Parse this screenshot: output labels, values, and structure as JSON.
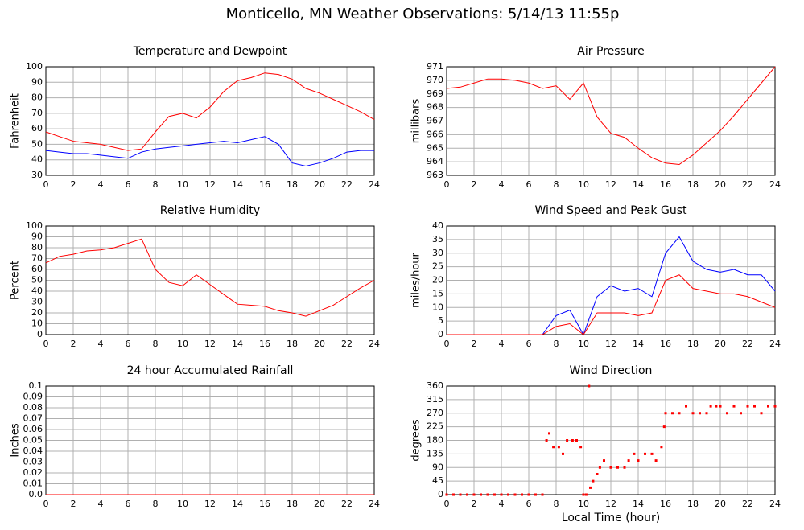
{
  "title": "Monticello, MN Weather Observations: 5/14/13 11:55p",
  "chart_data": [
    {
      "type": "line",
      "title": "Temperature and Dewpoint",
      "ylabel": "Fahrenheit",
      "x": [
        0,
        1,
        2,
        3,
        4,
        5,
        6,
        7,
        8,
        9,
        10,
        11,
        12,
        13,
        14,
        15,
        16,
        17,
        18,
        19,
        20,
        21,
        22,
        23,
        24
      ],
      "series": [
        {
          "color": "#ff0000",
          "values": [
            58,
            55,
            52,
            51,
            50,
            48,
            46,
            47,
            58,
            68,
            70,
            67,
            74,
            84,
            91,
            93,
            96,
            95,
            92,
            86,
            83,
            79,
            75,
            71,
            66
          ]
        },
        {
          "color": "#0000ff",
          "values": [
            46,
            45,
            44,
            44,
            43,
            42,
            41,
            45,
            47,
            48,
            49,
            50,
            51,
            52,
            51,
            53,
            55,
            50,
            38,
            36,
            38,
            41,
            45,
            46,
            46
          ]
        }
      ],
      "xlim": [
        0,
        24
      ],
      "xticks": [
        0,
        2,
        4,
        6,
        8,
        10,
        12,
        14,
        16,
        18,
        20,
        22,
        24
      ],
      "ylim": [
        30,
        100
      ],
      "yticks": [
        30,
        40,
        50,
        60,
        70,
        80,
        90,
        100
      ],
      "grid": true
    },
    {
      "type": "line",
      "title": "Air Pressure",
      "ylabel": "millibars",
      "x": [
        0,
        1,
        2,
        3,
        4,
        5,
        6,
        7,
        8,
        9,
        10,
        11,
        12,
        13,
        14,
        15,
        16,
        17,
        18,
        19,
        20,
        21,
        22,
        23,
        24
      ],
      "series": [
        {
          "color": "#ff0000",
          "values": [
            969.4,
            969.5,
            969.8,
            970.1,
            970.1,
            970.0,
            969.8,
            969.4,
            969.6,
            968.6,
            969.8,
            967.3,
            966.1,
            965.8,
            965.0,
            964.3,
            963.9,
            963.8,
            964.5,
            965.4,
            966.3,
            967.4,
            968.6,
            969.8,
            971.0
          ]
        }
      ],
      "xlim": [
        0,
        24
      ],
      "xticks": [
        0,
        2,
        4,
        6,
        8,
        10,
        12,
        14,
        16,
        18,
        20,
        22,
        24
      ],
      "ylim": [
        963,
        971
      ],
      "yticks": [
        963,
        964,
        965,
        966,
        967,
        968,
        969,
        970,
        971
      ],
      "grid": true
    },
    {
      "type": "line",
      "title": "Relative Humidity",
      "ylabel": "Percent",
      "x": [
        0,
        1,
        2,
        3,
        4,
        5,
        6,
        7,
        8,
        9,
        10,
        11,
        12,
        13,
        14,
        15,
        16,
        17,
        18,
        19,
        20,
        21,
        22,
        23,
        24
      ],
      "series": [
        {
          "color": "#ff0000",
          "values": [
            66,
            72,
            74,
            77,
            78,
            80,
            84,
            88,
            60,
            48,
            45,
            55,
            46,
            37,
            28,
            27,
            26,
            22,
            20,
            17,
            22,
            27,
            35,
            43,
            50
          ]
        }
      ],
      "xlim": [
        0,
        24
      ],
      "xticks": [
        0,
        2,
        4,
        6,
        8,
        10,
        12,
        14,
        16,
        18,
        20,
        22,
        24
      ],
      "ylim": [
        0,
        100
      ],
      "yticks": [
        0,
        10,
        20,
        30,
        40,
        50,
        60,
        70,
        80,
        90,
        100
      ],
      "grid": true
    },
    {
      "type": "line",
      "title": "Wind Speed and Peak Gust",
      "ylabel": "miles/hour",
      "x": [
        0,
        1,
        2,
        3,
        4,
        5,
        6,
        7,
        8,
        9,
        10,
        11,
        12,
        13,
        14,
        15,
        16,
        17,
        18,
        19,
        20,
        21,
        22,
        23,
        24
      ],
      "series": [
        {
          "color": "#0000ff",
          "values": [
            0,
            0,
            0,
            0,
            0,
            0,
            0,
            0,
            7,
            9,
            0,
            14,
            18,
            16,
            17,
            14,
            30,
            36,
            27,
            24,
            23,
            24,
            22,
            22,
            16
          ]
        },
        {
          "color": "#ff0000",
          "values": [
            0,
            0,
            0,
            0,
            0,
            0,
            0,
            0,
            3,
            4,
            0,
            8,
            8,
            8,
            7,
            8,
            20,
            22,
            17,
            16,
            15,
            15,
            14,
            12,
            10
          ]
        }
      ],
      "xlim": [
        0,
        24
      ],
      "xticks": [
        0,
        2,
        4,
        6,
        8,
        10,
        12,
        14,
        16,
        18,
        20,
        22,
        24
      ],
      "ylim": [
        0,
        40
      ],
      "yticks": [
        0,
        5,
        10,
        15,
        20,
        25,
        30,
        35,
        40
      ],
      "grid": true
    },
    {
      "type": "line",
      "title": "24 hour Accumulated Rainfall",
      "ylabel": "Inches",
      "x": [
        0,
        24
      ],
      "series": [
        {
          "color": "#ff0000",
          "values": [
            0,
            0
          ]
        }
      ],
      "xlim": [
        0,
        24
      ],
      "xticks": [
        0,
        2,
        4,
        6,
        8,
        10,
        12,
        14,
        16,
        18,
        20,
        22,
        24
      ],
      "ylim": [
        0,
        0.1
      ],
      "yticks": [
        {
          "value": 0,
          "label": "0.0"
        },
        0.01,
        0.02,
        0.03,
        0.04,
        0.05,
        0.06,
        0.07,
        0.08,
        0.09,
        0.1
      ],
      "grid": true
    },
    {
      "type": "scatter",
      "title": "Wind Direction",
      "ylabel": "degrees",
      "xlabel": "Local Time (hour)",
      "x": [
        0,
        0.5,
        1,
        1.5,
        2,
        2.5,
        3,
        3.5,
        4,
        4.5,
        5,
        5.5,
        6,
        6.5,
        7,
        7.3,
        7.5,
        7.8,
        8.2,
        8.5,
        8.8,
        9.2,
        9.5,
        9.8,
        10,
        10.2,
        10.4,
        10.5,
        10.7,
        11,
        11.2,
        11.5,
        12,
        12.5,
        13,
        13.3,
        13.7,
        14,
        14.5,
        15,
        15.3,
        15.7,
        15.9,
        16,
        16.5,
        17,
        17.5,
        18,
        18.5,
        19,
        19.3,
        19.7,
        20,
        20.5,
        21,
        21.5,
        22,
        22.5,
        23,
        23.5,
        24
      ],
      "series": [
        {
          "color": "#ff0000",
          "values": [
            0,
            0,
            0,
            0,
            0,
            0,
            0,
            0,
            0,
            0,
            0,
            0,
            0,
            0,
            0,
            180,
            203,
            158,
            158,
            135,
            180,
            180,
            180,
            158,
            0,
            0,
            360,
            23,
            45,
            68,
            90,
            113,
            90,
            90,
            90,
            113,
            135,
            113,
            135,
            135,
            113,
            158,
            225,
            270,
            270,
            270,
            293,
            270,
            270,
            270,
            293,
            293,
            293,
            270,
            293,
            270,
            293,
            293,
            270,
            293,
            293
          ]
        }
      ],
      "xlim": [
        0,
        24
      ],
      "xticks": [
        0,
        2,
        4,
        6,
        8,
        10,
        12,
        14,
        16,
        18,
        20,
        22,
        24
      ],
      "ylim": [
        0,
        360
      ],
      "yticks": [
        0,
        45,
        90,
        135,
        180,
        225,
        270,
        315,
        360
      ],
      "grid": true
    }
  ]
}
